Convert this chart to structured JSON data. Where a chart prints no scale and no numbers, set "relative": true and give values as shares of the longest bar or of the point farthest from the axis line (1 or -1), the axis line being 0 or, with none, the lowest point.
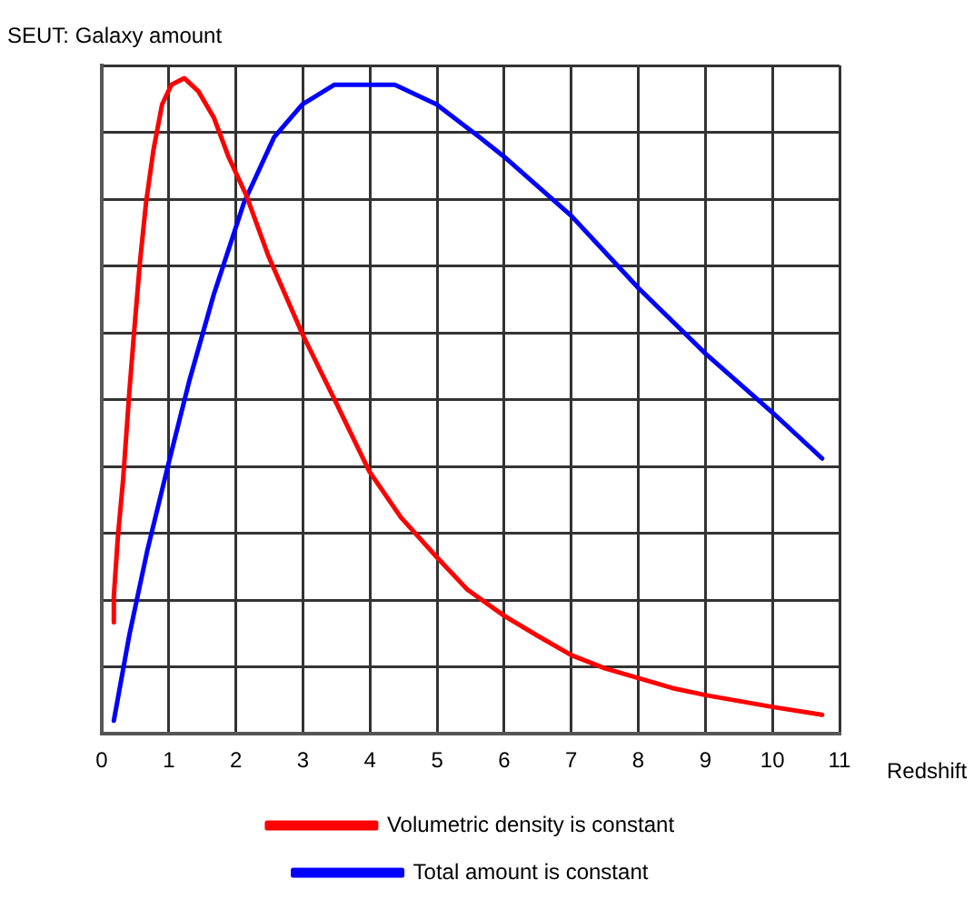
{
  "chart_data": {
    "type": "line",
    "ylabel": "SEUT: Galaxy amount",
    "xlabel": "Redshift",
    "relative": true,
    "xlim": [
      0,
      11
    ],
    "xticks": [
      0,
      1,
      2,
      3,
      4,
      5,
      6,
      7,
      8,
      9,
      10,
      11
    ],
    "grid": true,
    "legend": "bottom",
    "marker": "none",
    "line_style": "solid",
    "series": [
      {
        "name": "Volumetric density is constant",
        "color": "#ff0000",
        "x": [
          0.18,
          0.18,
          0.24,
          0.32,
          0.41,
          0.48,
          0.57,
          0.66,
          0.77,
          0.9,
          1.04,
          1.23,
          1.44,
          1.67,
          1.89,
          2.16,
          2.48,
          2.99,
          3.47,
          3.99,
          4.46,
          4.99,
          5.45,
          6,
          6.49,
          7,
          7.5,
          8,
          8.5,
          9,
          9.5,
          10,
          10.74
        ],
        "values": [
          0.17,
          0.21,
          0.3,
          0.39,
          0.52,
          0.61,
          0.72,
          0.81,
          0.89,
          0.96,
          0.99,
          1,
          0.98,
          0.94,
          0.88,
          0.82,
          0.73,
          0.61,
          0.51,
          0.4,
          0.33,
          0.27,
          0.22,
          0.18,
          0.15,
          0.12,
          0.1,
          0.085,
          0.07,
          0.059,
          0.05,
          0.041,
          0.029
        ]
      },
      {
        "name": "Total amount is constant",
        "color": "#0000ff",
        "x": [
          0.18,
          0.41,
          0.68,
          0.99,
          1.31,
          1.67,
          2.12,
          2.57,
          2.99,
          3.47,
          3.92,
          4.37,
          4.99,
          5.63,
          6,
          7,
          8,
          9,
          10,
          10.74
        ],
        "values": [
          0.02,
          0.15,
          0.28,
          0.41,
          0.54,
          0.67,
          0.81,
          0.91,
          0.96,
          0.99,
          0.99,
          0.99,
          0.96,
          0.91,
          0.88,
          0.79,
          0.68,
          0.58,
          0.49,
          0.42
        ]
      }
    ]
  }
}
